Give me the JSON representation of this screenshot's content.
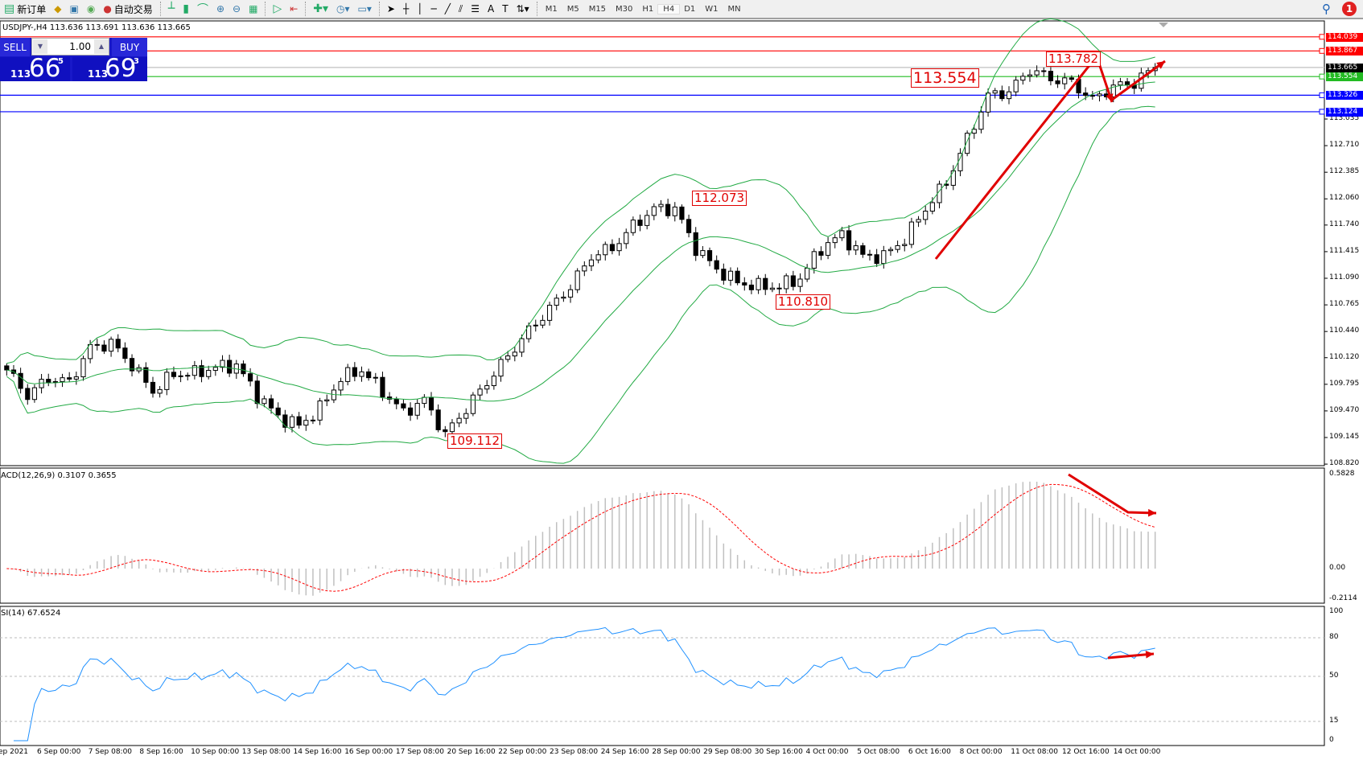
{
  "toolbar": {
    "new_order": "新订单",
    "auto_trading": "自动交易",
    "timeframes": [
      "M1",
      "M5",
      "M15",
      "M30",
      "H1",
      "H4",
      "D1",
      "W1",
      "MN"
    ],
    "active_timeframe": "H4",
    "notification_count": "1"
  },
  "chart": {
    "symbol_line": "USDJPY-,H4  113.636 113.691 113.636 113.665",
    "trade_panel": {
      "sell": "SELL",
      "buy": "BUY",
      "lot": "1.00",
      "bid_prefix": "113",
      "bid_big": "66",
      "bid_sup": "5",
      "ask_prefix": "113",
      "ask_big": "69",
      "ask_sup": "3"
    },
    "price_ticks": [
      "113.035",
      "112.710",
      "112.385",
      "112.060",
      "111.740",
      "111.415",
      "111.090",
      "110.765",
      "110.440",
      "110.120",
      "109.795",
      "109.470",
      "109.145",
      "108.820"
    ],
    "levels": [
      {
        "price": 114.039,
        "label": "114.039",
        "color": "#ff0000"
      },
      {
        "price": 113.867,
        "label": "113.867",
        "color": "#ff0000"
      },
      {
        "price": 113.665,
        "label": "113.665",
        "color": "#000000",
        "line": "#c0c0c0"
      },
      {
        "price": 113.554,
        "label": "113.554",
        "color": "#22bb22"
      },
      {
        "price": 113.326,
        "label": "113.326",
        "color": "#0000ff"
      },
      {
        "price": 113.124,
        "label": "113.124",
        "color": "#0000ff"
      }
    ],
    "annotations": [
      "113.554",
      "113.782",
      "112.073",
      "110.810",
      "109.112"
    ],
    "price_path": [
      109.97,
      109.66,
      109.87,
      109.82,
      110.24,
      110.3,
      110.03,
      109.71,
      109.92,
      109.93,
      110.0,
      110.03,
      109.66,
      109.4,
      109.29,
      109.5,
      109.87,
      109.97,
      109.71,
      109.45,
      109.6,
      109.18,
      109.5,
      109.82,
      110.14,
      110.45,
      110.72,
      110.99,
      111.36,
      111.46,
      111.73,
      111.94,
      111.94,
      111.46,
      111.2,
      111.04,
      110.99,
      110.99,
      111.09,
      111.46,
      111.62,
      111.36,
      111.36,
      111.57,
      111.94,
      112.26,
      112.79,
      113.32,
      113.37,
      113.64,
      113.53,
      113.48,
      113.27,
      113.43,
      113.48,
      113.665
    ]
  },
  "macd": {
    "label": "ACD(12,26,9) 0.3107 0.3655",
    "ticks": [
      "0.5828",
      "0.00",
      "-0.2114"
    ]
  },
  "rsi": {
    "label": "SI(14) 67.6524",
    "ticks": [
      "100",
      "80",
      "50",
      "15",
      "0"
    ]
  },
  "time_axis": [
    "ep 2021",
    "6 Sep 00:00",
    "7 Sep 08:00",
    "8 Sep 16:00",
    "10 Sep 00:00",
    "13 Sep 08:00",
    "14 Sep 16:00",
    "16 Sep 00:00",
    "17 Sep 08:00",
    "20 Sep 16:00",
    "22 Sep 00:00",
    "23 Sep 08:00",
    "24 Sep 16:00",
    "28 Sep 00:00",
    "29 Sep 08:00",
    "30 Sep 16:00",
    "4 Oct 00:00",
    "5 Oct 08:00",
    "6 Oct 16:00",
    "8 Oct 00:00",
    "11 Oct 08:00",
    "12 Oct 16:00",
    "14 Oct 00:00"
  ],
  "colors": {
    "bands": "#22aa44",
    "macd_signal": "#ff0000",
    "macd_hist": "#c0c0c0",
    "rsi": "#1e90ff",
    "annotation": "#e00000"
  }
}
